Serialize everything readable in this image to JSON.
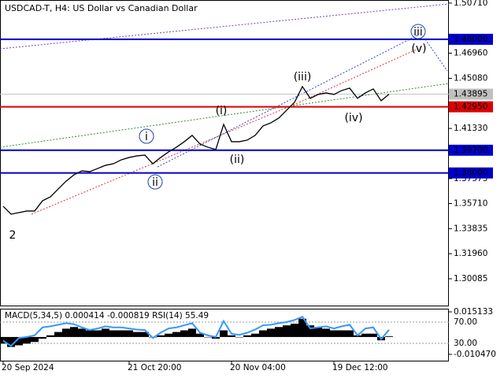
{
  "chart_data": [
    {
      "type": "line",
      "title": "USDCAD-T, H4:  US Dollar vs Canadian Dollar",
      "color": "#000000",
      "categories": [
        "20 Sep 2024",
        null,
        null,
        null,
        null,
        null,
        null,
        null,
        null,
        null,
        null,
        null,
        null,
        null,
        null,
        null,
        "21 Oct 20:00",
        null,
        null,
        null,
        null,
        null,
        null,
        null,
        null,
        null,
        null,
        null,
        null,
        "20 Nov 04:00",
        null,
        null,
        null,
        null,
        null,
        null,
        null,
        null,
        null,
        null,
        null,
        null,
        "19 Dec 12:00",
        null,
        null,
        null,
        null,
        null,
        null,
        null
      ],
      "values": [
        1.35507,
        1.34917,
        1.35035,
        1.35153,
        1.35153,
        1.35919,
        1.36214,
        1.36803,
        1.37392,
        1.37864,
        1.38158,
        1.381,
        1.38335,
        1.38571,
        1.38689,
        1.38983,
        1.3916,
        1.39278,
        1.39337,
        1.38689,
        1.3916,
        1.39573,
        1.39926,
        1.40339,
        1.4081,
        1.40162,
        1.39926,
        1.3975,
        1.41635,
        1.40339,
        1.40339,
        1.40457,
        1.4081,
        1.41517,
        1.41753,
        1.42107,
        1.42696,
        1.43285,
        1.44464,
        1.4358,
        1.43874,
        1.43992,
        1.43874,
        1.44169,
        1.44346,
        1.4358,
        1.43992,
        1.44287,
        1.43403,
        1.43895
      ],
      "ylim": [
        1.2808,
        1.5094
      ],
      "yticks": [
        {
          "value": 1.5071,
          "label": "1.50710"
        },
        {
          "value": 1.4696,
          "label": "1.46960"
        },
        {
          "value": 1.4508,
          "label": "1.45080"
        },
        {
          "value": 1.4133,
          "label": "1.41330"
        },
        1.37575,
        {
          "value": 1.3571,
          "label": "1.35710"
        },
        1.33835,
        {
          "value": 1.3196,
          "label": "1.31960"
        },
        1.30085
      ],
      "levels": [
        {
          "value": 1.48,
          "label": "1.48000",
          "color": "#0000cc"
        },
        {
          "value": 1.4295,
          "label": "1.42950",
          "color": "#dd0000"
        },
        {
          "value": 1.397,
          "label": "1.39700",
          "color": "#0000cc"
        },
        {
          "value": 1.38,
          "label": "1.38000",
          "color": "#0000cc"
        }
      ],
      "current": {
        "value": 1.43895,
        "label": "1.43895",
        "color": "#c0c0c0"
      },
      "annotations": [
        {
          "text": "2",
          "color": "#c0392b",
          "circled": false
        },
        {
          "text": "i",
          "color": "#1f3fbf",
          "circled": true
        },
        {
          "text": "ii",
          "color": "#1f3fbf",
          "circled": true
        },
        {
          "text": "(i)",
          "color": "#c0392b",
          "circled": false
        },
        {
          "text": "(ii)",
          "color": "#c0392b",
          "circled": false
        },
        {
          "text": "(iii)",
          "color": "#c0392b",
          "circled": false
        },
        {
          "text": "(iv)",
          "color": "#c0392b",
          "circled": false
        },
        {
          "text": "(v)",
          "color": "#c0392b",
          "circled": false
        },
        {
          "text": "iii",
          "color": "#1f3fbf",
          "circled": true
        }
      ]
    },
    {
      "type": "macd",
      "title": "MACD(5,34,5) 0.000414 -0.000819 RSI(14) 55.49",
      "color": "#000000",
      "rsi_color": "#3399ff",
      "values": [
        -0.004,
        -0.006,
        -0.005,
        -0.004,
        -0.003,
        -0.001,
        0.001,
        0.003,
        0.005,
        0.006,
        0.005,
        0.004,
        0.004,
        0.005,
        0.004,
        0.004,
        0.004,
        0.003,
        0.003,
        0,
        0.001,
        0.002,
        0.003,
        0.004,
        0.005,
        0.002,
        0,
        -0.001,
        0.004,
        0.001,
        0,
        0.001,
        0.002,
        0.004,
        0.005,
        0.006,
        0.007,
        0.008,
        0.011,
        0.007,
        0.006,
        0.005,
        0.004,
        0.004,
        0.004,
        0.001,
        0.002,
        0.002,
        -0.002,
        0.0004
      ],
      "rsi": [
        35,
        25,
        40,
        42,
        45,
        60,
        62,
        65,
        68,
        66,
        60,
        55,
        58,
        62,
        60,
        60,
        58,
        56,
        55,
        40,
        50,
        58,
        60,
        64,
        68,
        50,
        45,
        42,
        72,
        48,
        46,
        50,
        56,
        64,
        65,
        68,
        70,
        74,
        80,
        58,
        60,
        62,
        58,
        62,
        65,
        45,
        58,
        60,
        38,
        55.49
      ],
      "ylim": [
        -0.01426,
        0.01703
      ],
      "yticks": [
        0.015133,
        {
          "value": -0.01047,
          "label": "-0.010470"
        }
      ],
      "y2lim": [
        -2.6,
        95.2
      ],
      "y2ticks": [
        {
          "value": 70,
          "label": "70.00"
        },
        {
          "value": 30,
          "label": "30.00"
        }
      ]
    }
  ]
}
